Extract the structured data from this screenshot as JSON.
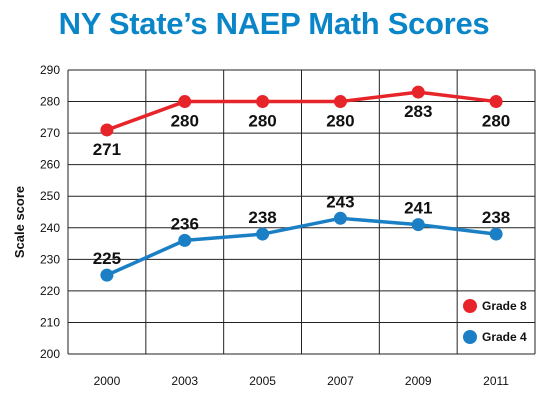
{
  "chart_data": {
    "type": "line",
    "title": "NY State’s NAEP Math Scores",
    "ylabel": "Scale score",
    "xlabel": "",
    "categories": [
      "2000",
      "2003",
      "2005",
      "2007",
      "2009",
      "2011"
    ],
    "ylim": [
      200,
      290
    ],
    "yticks": [
      200,
      210,
      220,
      230,
      240,
      250,
      260,
      270,
      280,
      290
    ],
    "grid": true,
    "legend_position": "bottom-right",
    "series": [
      {
        "name": "Grade 8",
        "color": "#e8242b",
        "values": [
          271,
          280,
          280,
          280,
          283,
          280
        ],
        "labels": [
          "271",
          "280",
          "280",
          "280",
          "283",
          "280"
        ]
      },
      {
        "name": "Grade 4",
        "color": "#1a7fc4",
        "values": [
          225,
          236,
          238,
          243,
          241,
          238
        ],
        "labels": [
          "225",
          "236",
          "238",
          "243",
          "241",
          "238"
        ]
      }
    ]
  }
}
